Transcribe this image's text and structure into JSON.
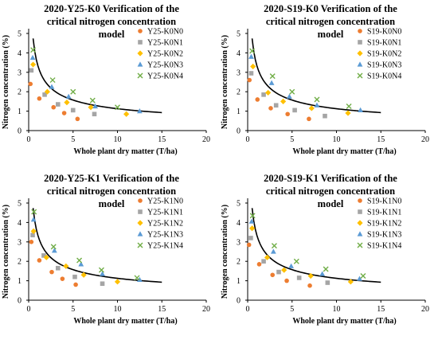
{
  "chart_data": [
    {
      "type": "scatter",
      "title_lines": [
        "2020-Y25-K0 Verification of the",
        "critical nitrogen concentration",
        "model"
      ],
      "xlabel": "Whole plant dry matter  (T/ha)",
      "ylabel": "Nitrogen concentration  (%)",
      "xlim": [
        0,
        20
      ],
      "ylim": [
        0,
        5
      ],
      "xticks": [
        "0",
        "5",
        "10",
        "15",
        "20"
      ],
      "yticks": [
        "0",
        "1",
        "2",
        "3",
        "4",
        "5"
      ],
      "legend_position": "top-right",
      "curve": {
        "a": 3.4,
        "b": 0.48,
        "x_range": [
          0.5,
          15
        ]
      },
      "series": [
        {
          "name": "Y25-K0N0",
          "color": "#ED7D31",
          "marker": "circle",
          "x": [
            0.2,
            1.2,
            2.8,
            4.0,
            5.5
          ],
          "y": [
            2.4,
            1.65,
            1.2,
            0.9,
            0.6
          ]
        },
        {
          "name": "Y25-K0N1",
          "color": "#A5A5A5",
          "marker": "square",
          "x": [
            0.3,
            1.8,
            3.3,
            5.0,
            7.4
          ],
          "y": [
            3.1,
            1.85,
            1.35,
            1.05,
            0.85
          ]
        },
        {
          "name": "Y25-K0N2",
          "color": "#FFC000",
          "marker": "diamond",
          "x": [
            0.5,
            2.1,
            4.3,
            7.0,
            11.0
          ],
          "y": [
            3.4,
            2.0,
            1.45,
            1.2,
            0.85
          ]
        },
        {
          "name": "Y25-K0N3",
          "color": "#5B9BD5",
          "marker": "triangle",
          "x": [
            0.45,
            2.6,
            4.5,
            7.5,
            12.5
          ],
          "y": [
            3.75,
            2.25,
            1.75,
            1.25,
            1.0
          ]
        },
        {
          "name": "Y25-K0N4",
          "color": "#70AD47",
          "marker": "x",
          "x": [
            0.5,
            2.7,
            5.0,
            7.2,
            10.0
          ],
          "y": [
            4.15,
            2.6,
            2.0,
            1.55,
            1.2
          ]
        }
      ]
    },
    {
      "type": "scatter",
      "title_lines": [
        "2020-S19-K0 Verification of the",
        "critical nitrogen concentration",
        "model"
      ],
      "xlabel": "Whole plant dry matter  (T/ha)",
      "ylabel": "Nitrogen concentration  (%)",
      "xlim": [
        0,
        20
      ],
      "ylim": [
        0,
        5
      ],
      "xticks": [
        "0",
        "5",
        "10",
        "15",
        "20"
      ],
      "yticks": [
        "0",
        "1",
        "2",
        "3",
        "4",
        "5"
      ],
      "legend_position": "top-right",
      "curve": {
        "a": 3.4,
        "b": 0.48,
        "x_range": [
          0.5,
          15
        ]
      },
      "series": [
        {
          "name": "S19-K0N0",
          "color": "#ED7D31",
          "marker": "circle",
          "x": [
            0.2,
            1.1,
            2.6,
            4.5,
            6.9
          ],
          "y": [
            2.6,
            1.6,
            1.15,
            0.85,
            0.6
          ]
        },
        {
          "name": "S19-K0N1",
          "color": "#A5A5A5",
          "marker": "square",
          "x": [
            0.4,
            1.8,
            3.2,
            5.3,
            8.7
          ],
          "y": [
            2.95,
            1.85,
            1.3,
            1.05,
            0.75
          ]
        },
        {
          "name": "S19-K0N2",
          "color": "#FFC000",
          "marker": "diamond",
          "x": [
            0.6,
            2.3,
            4.0,
            7.2,
            11.3
          ],
          "y": [
            3.3,
            1.95,
            1.5,
            1.15,
            0.9
          ]
        },
        {
          "name": "S19-K0N3",
          "color": "#5B9BD5",
          "marker": "triangle",
          "x": [
            0.4,
            2.7,
            4.7,
            7.8,
            12.7
          ],
          "y": [
            3.8,
            2.45,
            1.75,
            1.3,
            1.05
          ]
        },
        {
          "name": "S19-K0N4",
          "color": "#70AD47",
          "marker": "x",
          "x": [
            0.5,
            2.8,
            5.0,
            7.8,
            11.4
          ],
          "y": [
            4.1,
            2.8,
            2.0,
            1.6,
            1.25
          ]
        }
      ]
    },
    {
      "type": "scatter",
      "title_lines": [
        "2020-Y25-K1 Verification of the",
        "critical nitrogen concentration",
        "model"
      ],
      "xlabel": "Whole plant dry matter  (T/ha)",
      "ylabel": "Nitrogen concentration  (%)",
      "xlim": [
        0,
        20
      ],
      "ylim": [
        0,
        5
      ],
      "xticks": [
        "0",
        "5",
        "10",
        "15",
        "20"
      ],
      "yticks": [
        "0",
        "1",
        "2",
        "3",
        "4",
        "5"
      ],
      "legend_position": "top-right",
      "curve": {
        "a": 3.4,
        "b": 0.48,
        "x_range": [
          0.5,
          15
        ]
      },
      "series": [
        {
          "name": "Y25-K1N0",
          "color": "#ED7D31",
          "marker": "circle",
          "x": [
            0.3,
            1.2,
            2.6,
            3.8,
            5.3
          ],
          "y": [
            3.0,
            2.05,
            1.45,
            1.1,
            0.8
          ]
        },
        {
          "name": "Y25-K1N1",
          "color": "#A5A5A5",
          "marker": "square",
          "x": [
            0.45,
            1.7,
            3.3,
            5.2,
            8.3
          ],
          "y": [
            3.35,
            2.3,
            1.65,
            1.2,
            0.85
          ]
        },
        {
          "name": "Y25-K1N2",
          "color": "#FFC000",
          "marker": "diamond",
          "x": [
            0.55,
            2.0,
            4.2,
            6.2,
            10.0
          ],
          "y": [
            3.55,
            2.2,
            1.75,
            1.3,
            0.95
          ]
        },
        {
          "name": "Y25-K1N3",
          "color": "#5B9BD5",
          "marker": "triangle",
          "x": [
            0.55,
            2.9,
            5.9,
            8.3,
            12.5
          ],
          "y": [
            4.15,
            2.55,
            1.85,
            1.35,
            1.05
          ]
        },
        {
          "name": "Y25-K1N4",
          "color": "#70AD47",
          "marker": "x",
          "x": [
            0.6,
            2.8,
            5.7,
            8.2,
            12.2
          ],
          "y": [
            4.55,
            2.75,
            2.05,
            1.55,
            1.15
          ]
        }
      ]
    },
    {
      "type": "scatter",
      "title_lines": [
        "2020-S19-K1 Verification of the",
        "critical nitrogen concentration",
        "model"
      ],
      "xlabel": "Whole plant dry matter  (T/ha)",
      "ylabel": "Nitrogen concentration  (%)",
      "xlim": [
        0,
        20
      ],
      "ylim": [
        0,
        5
      ],
      "xticks": [
        "0",
        "5",
        "10",
        "15",
        "20"
      ],
      "yticks": [
        "0",
        "1",
        "2",
        "3",
        "4",
        "5"
      ],
      "legend_position": "top-right",
      "curve": {
        "a": 3.4,
        "b": 0.48,
        "x_range": [
          0.5,
          15
        ]
      },
      "series": [
        {
          "name": "S19-K1N0",
          "color": "#ED7D31",
          "marker": "circle",
          "x": [
            0.15,
            1.3,
            2.8,
            4.4,
            7.0
          ],
          "y": [
            2.85,
            1.85,
            1.3,
            1.0,
            0.75
          ]
        },
        {
          "name": "S19-K1N1",
          "color": "#A5A5A5",
          "marker": "square",
          "x": [
            0.35,
            1.8,
            3.5,
            5.8,
            9.0
          ],
          "y": [
            3.2,
            2.0,
            1.45,
            1.15,
            0.9
          ]
        },
        {
          "name": "S19-K1N2",
          "color": "#FFC000",
          "marker": "diamond",
          "x": [
            0.5,
            2.2,
            4.1,
            7.1,
            11.6
          ],
          "y": [
            3.7,
            2.2,
            1.55,
            1.25,
            0.95
          ]
        },
        {
          "name": "S19-K1N3",
          "color": "#5B9BD5",
          "marker": "triangle",
          "x": [
            0.45,
            2.9,
            4.9,
            8.4,
            12.6
          ],
          "y": [
            4.05,
            2.5,
            1.75,
            1.35,
            1.1
          ]
        },
        {
          "name": "S19-K1N4",
          "color": "#70AD47",
          "marker": "x",
          "x": [
            0.55,
            3.0,
            5.5,
            8.8,
            13.0
          ],
          "y": [
            4.35,
            2.8,
            2.0,
            1.6,
            1.25
          ]
        }
      ]
    }
  ]
}
